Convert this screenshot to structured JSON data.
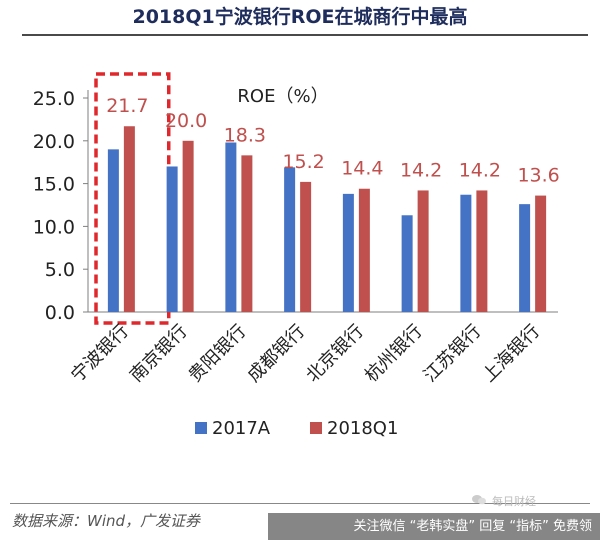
{
  "page": {
    "title": "2018Q1宁波银行ROE在城商行中最高",
    "source": "数据来源：Wind，广发证券",
    "footer_banner": "关注微信 “老韩实盘” 回复 “指标” 免费领",
    "watermark": "每日财经"
  },
  "chart_data": {
    "type": "bar",
    "title": "ROE（%）",
    "categories": [
      "宁波银行",
      "南京银行",
      "贵阳银行",
      "成都银行",
      "北京银行",
      "杭州银行",
      "江苏银行",
      "上海银行"
    ],
    "series": [
      {
        "name": "2017A",
        "color": "#4472c4",
        "values": [
          19.0,
          17.0,
          19.8,
          16.9,
          13.8,
          11.3,
          13.7,
          12.6
        ]
      },
      {
        "name": "2018Q1",
        "color": "#c0504d",
        "values": [
          21.7,
          20.0,
          18.3,
          15.2,
          14.4,
          14.2,
          14.2,
          13.6
        ]
      }
    ],
    "data_labels": [
      "21.7",
      "20.0",
      "18.3",
      "15.2",
      "14.4",
      "14.2",
      "14.2",
      "13.6"
    ],
    "label_color": "#c0504d",
    "y_ticks": [
      "0.0",
      "5.0",
      "10.0",
      "15.0",
      "20.0",
      "25.0"
    ],
    "ylim": [
      0,
      25
    ],
    "grid": false,
    "legend": "bottom",
    "highlight": "宁波银行"
  }
}
